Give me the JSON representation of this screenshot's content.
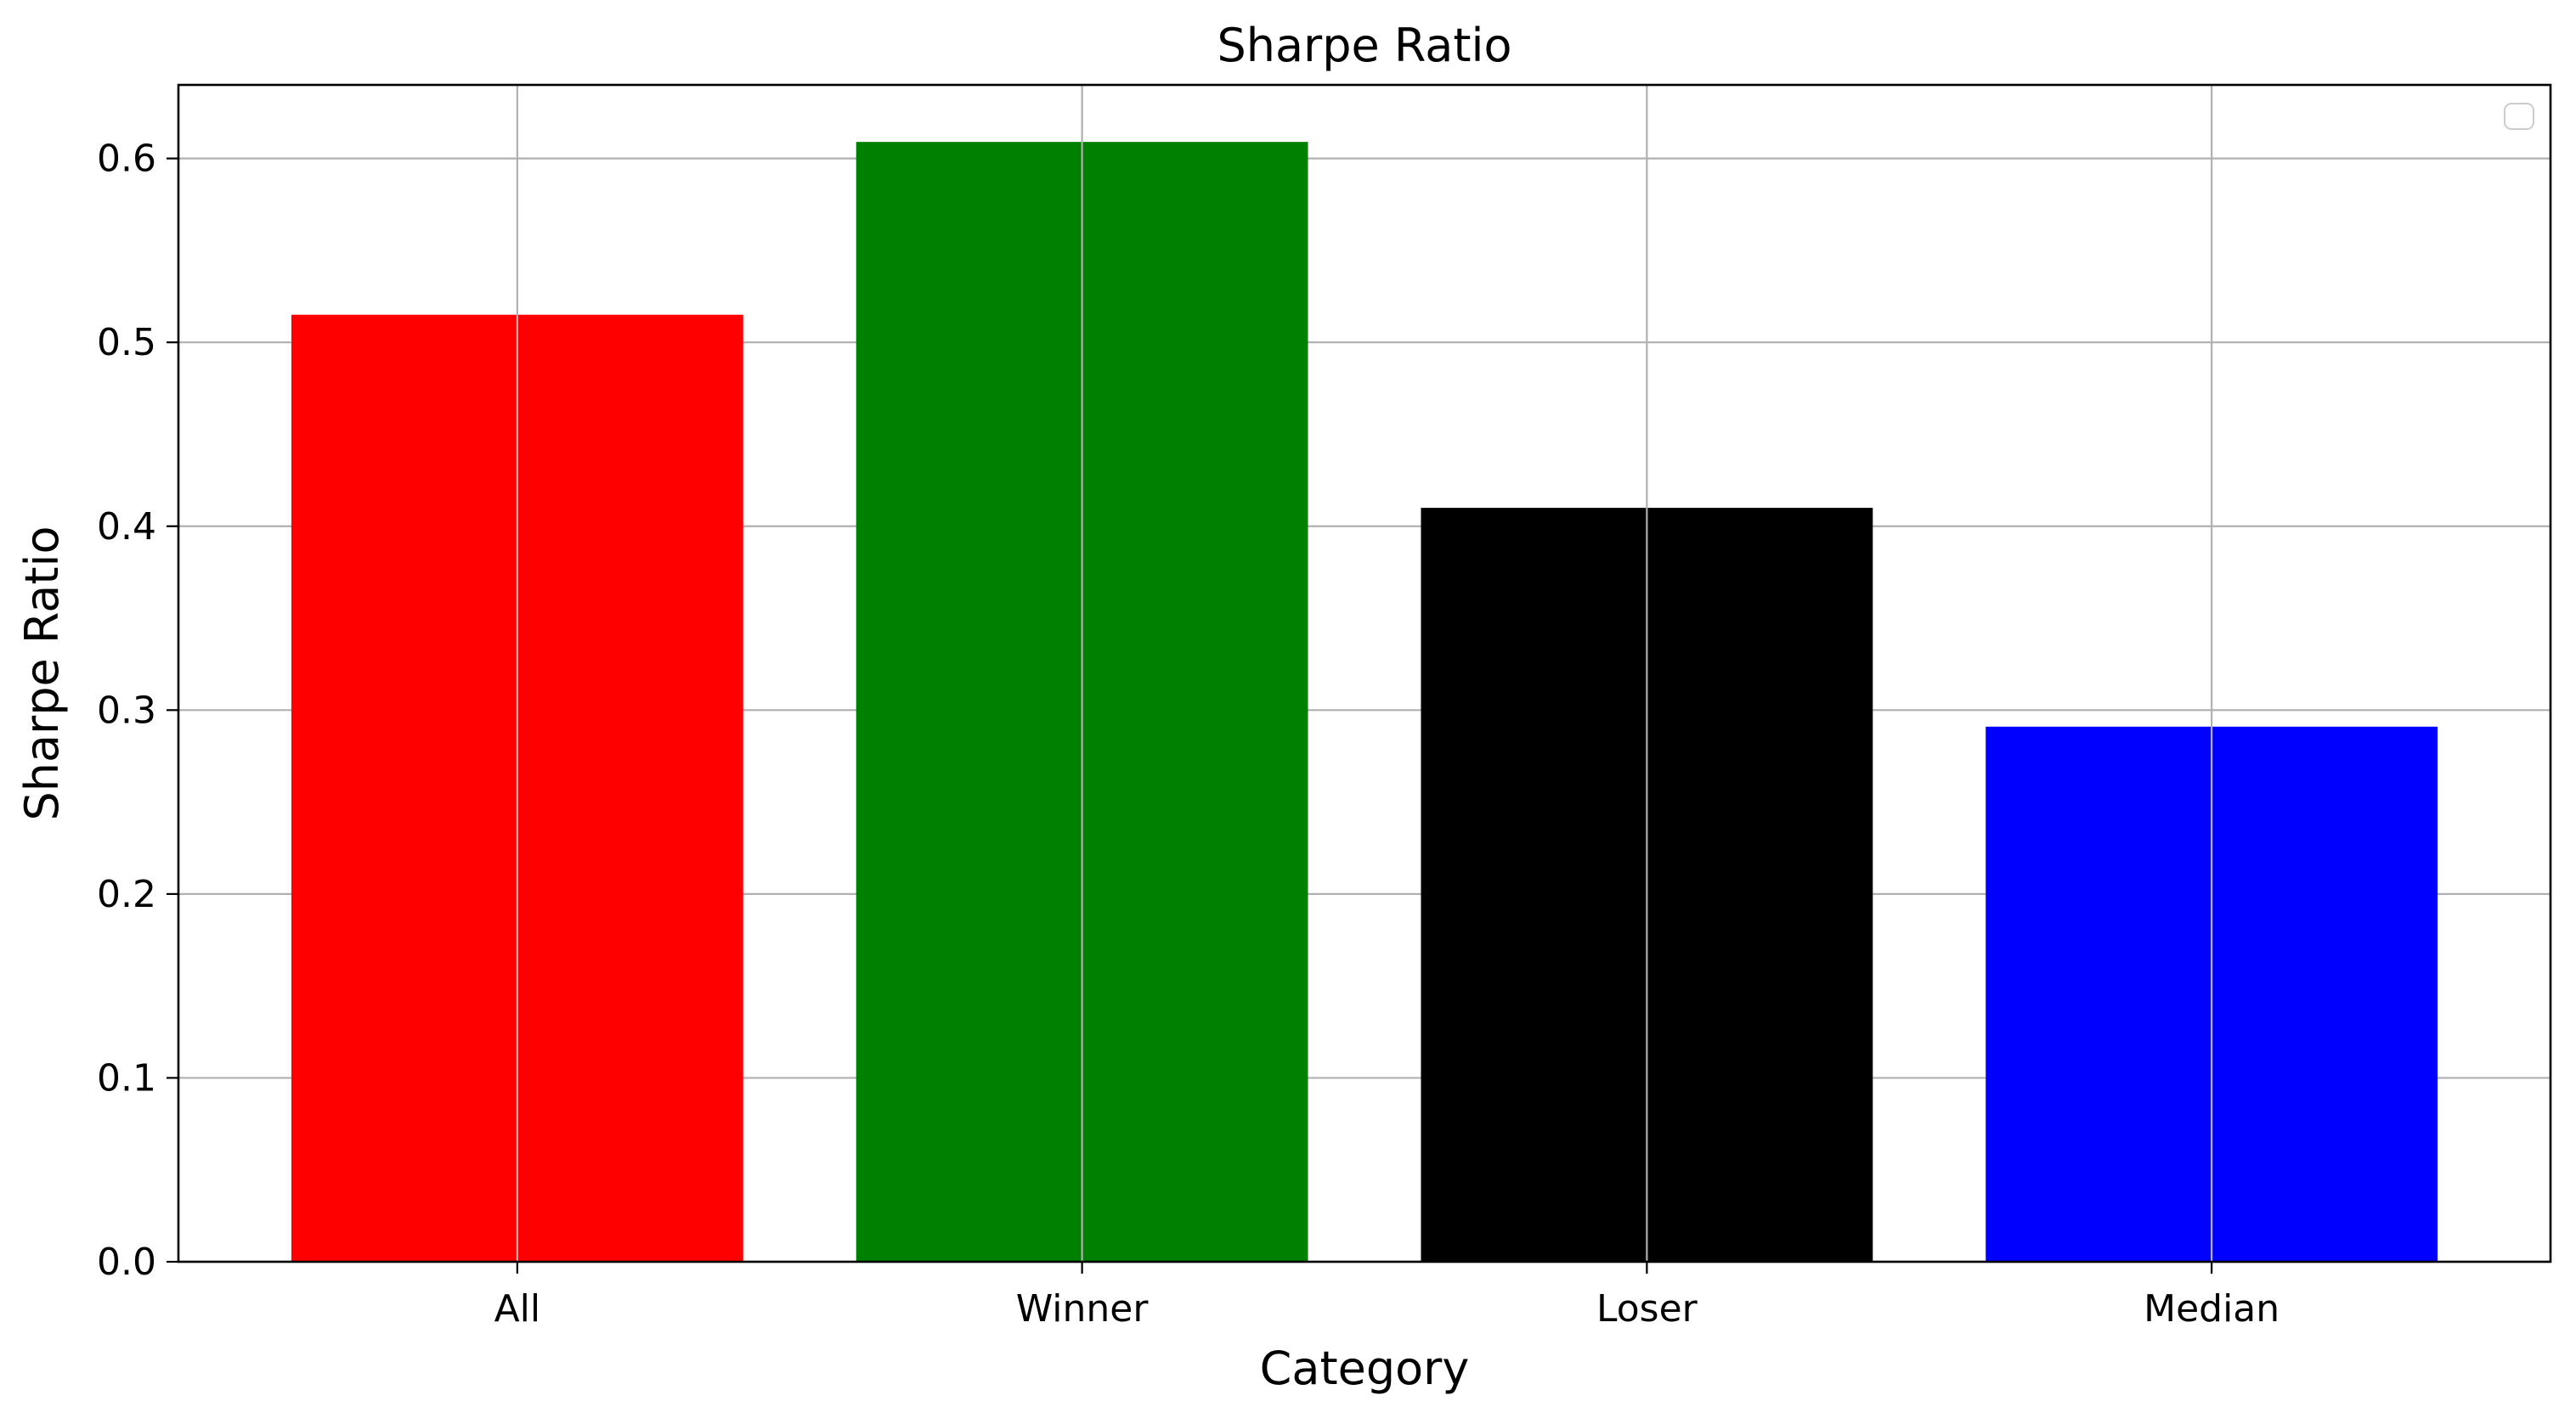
{
  "chart_data": {
    "type": "bar",
    "title": "Sharpe Ratio",
    "xlabel": "Category",
    "ylabel": "Sharpe Ratio",
    "categories": [
      "All",
      "Winner",
      "Loser",
      "Median"
    ],
    "values": [
      0.515,
      0.609,
      0.41,
      0.291
    ],
    "colors": [
      "#ff0000",
      "#008000",
      "#000000",
      "#0000ff"
    ],
    "ylim": [
      0.0,
      0.64
    ],
    "yticks": [
      0.0,
      0.1,
      0.2,
      0.3,
      0.4,
      0.5,
      0.6
    ],
    "ytick_labels": [
      "0.0",
      "0.1",
      "0.2",
      "0.3",
      "0.4",
      "0.5",
      "0.6"
    ],
    "grid": true,
    "legend": {
      "position": "top-right",
      "entries": []
    }
  }
}
